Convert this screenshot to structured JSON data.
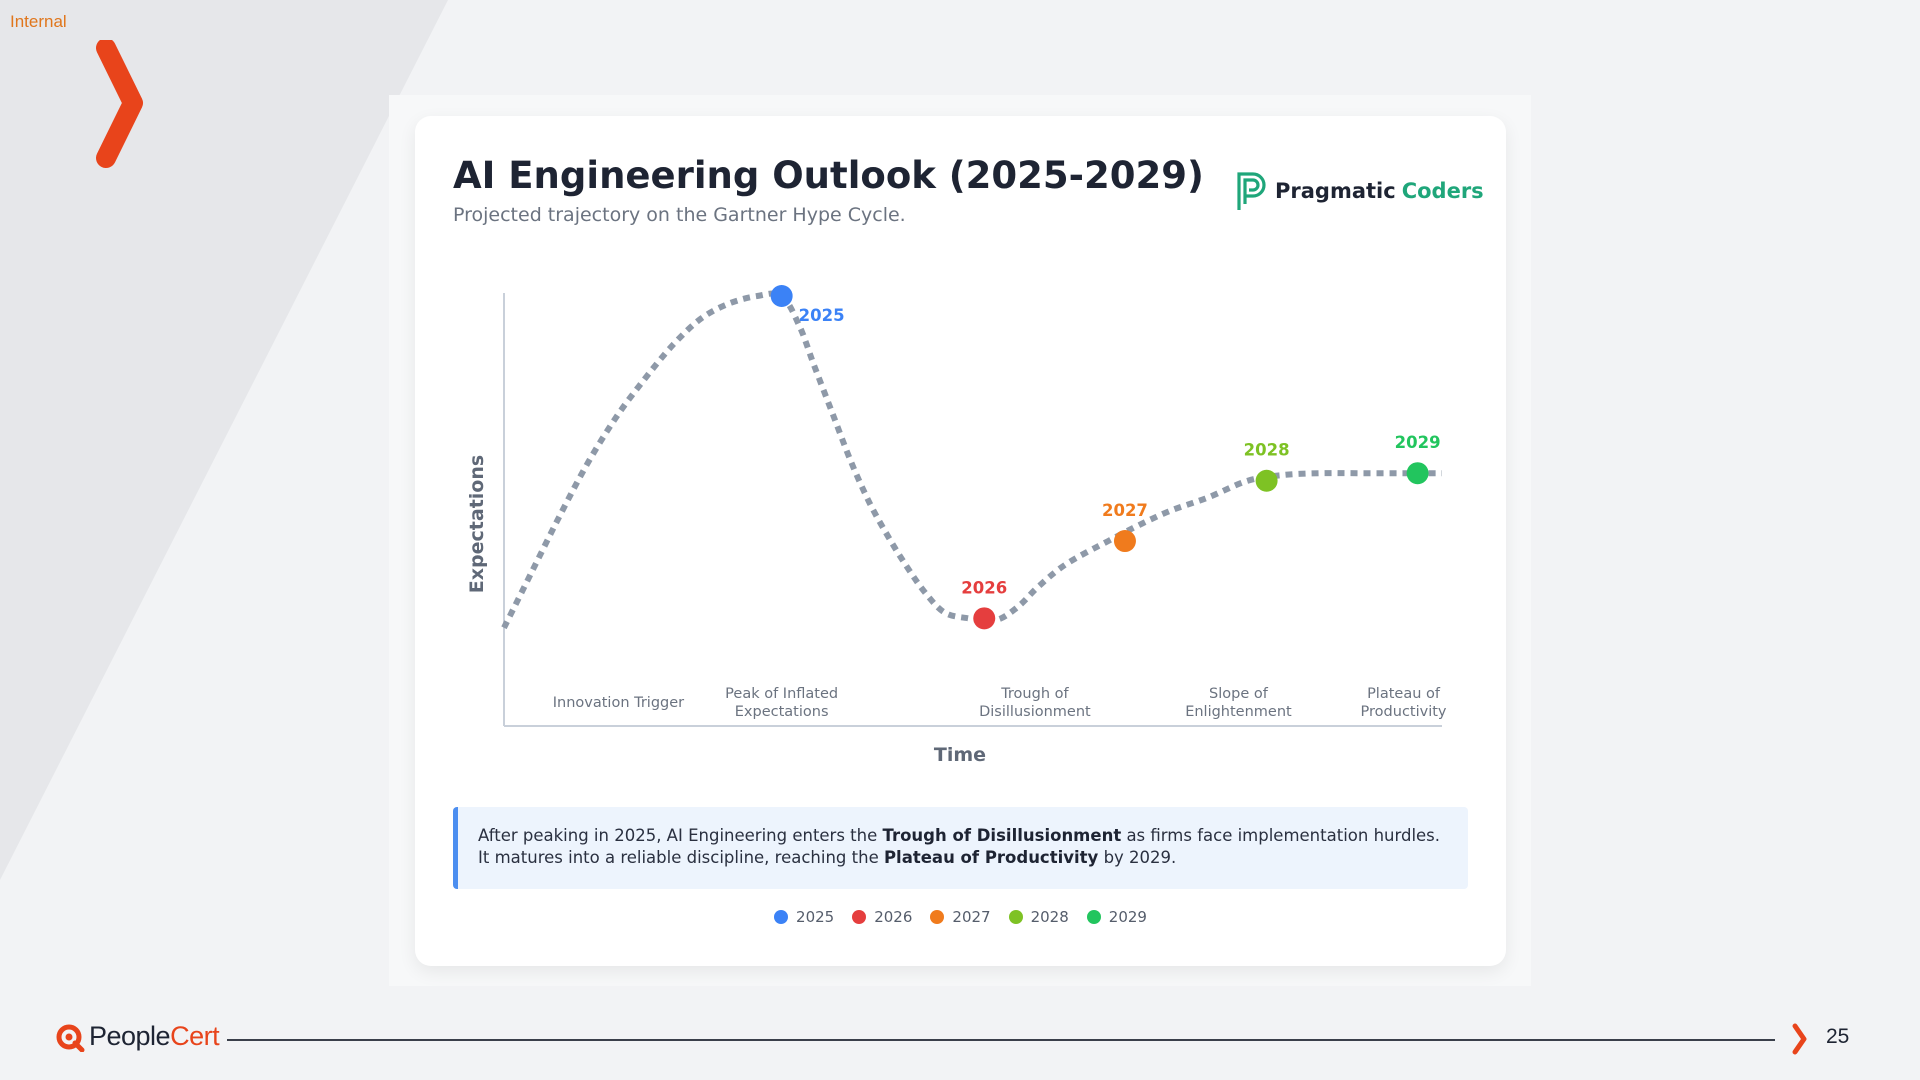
{
  "slide": {
    "classification": "Internal",
    "page_number": "25",
    "footer_brand": {
      "part1": "People",
      "part2": "Cert"
    },
    "colors": {
      "accent": "#e8441b",
      "classification": "#e0761c"
    }
  },
  "card": {
    "title": "AI Engineering Outlook (2025-2029)",
    "subtitle": "Projected trajectory on the Gartner Hype Cycle.",
    "brand": {
      "part1": "Pragmatic",
      "part2": "Coders",
      "color": "#1fa67a"
    },
    "callout": {
      "t1": "After peaking in 2025, AI Engineering enters the ",
      "b1": "Trough of Disillusionment",
      "t2": " as firms face implementation hurdles. It matures into a reliable discipline, reaching the ",
      "b2": "Plateau of Productivity",
      "t3": " by 2029."
    }
  },
  "chart_data": {
    "type": "line",
    "title": "AI Engineering Outlook (2025-2029)",
    "xlabel": "Time",
    "ylabel": "Expectations",
    "xlim": [
      0,
      100
    ],
    "ylim": [
      0,
      100
    ],
    "curve": {
      "style": "dashed",
      "color": "#8e99a8",
      "x": [
        0,
        3,
        6,
        9,
        12,
        15,
        18,
        21,
        24,
        27,
        29.6,
        31.5,
        33,
        35,
        37,
        39,
        41,
        43,
        45,
        47,
        49.5,
        51.5,
        53,
        55,
        57,
        60,
        64.4,
        67.5,
        71,
        75,
        79.3,
        83,
        87,
        91,
        95.5,
        100
      ],
      "y": [
        12,
        27,
        42,
        56,
        68,
        78,
        87,
        94,
        98,
        100,
        100,
        92,
        82,
        69,
        56,
        45,
        36,
        28,
        21,
        16,
        14.5,
        14,
        14.5,
        18,
        23,
        29,
        35,
        39,
        43,
        46.5,
        51,
        52.5,
        53,
        53,
        53,
        53
      ]
    },
    "points": [
      {
        "year": "2025",
        "x": 29.6,
        "y": 100,
        "color": "#3b82f6"
      },
      {
        "year": "2026",
        "x": 51.2,
        "y": 14.5,
        "color": "#e53e3e"
      },
      {
        "year": "2027",
        "x": 66.2,
        "y": 35,
        "color": "#f07b1d"
      },
      {
        "year": "2028",
        "x": 81.3,
        "y": 51,
        "color": "#7ec224"
      },
      {
        "year": "2029",
        "x": 97.4,
        "y": 53,
        "color": "#22c55e"
      }
    ],
    "phases": [
      {
        "label": "Innovation Trigger",
        "lines": [
          "Innovation Trigger"
        ],
        "x": 12.2
      },
      {
        "label": "Peak of Inflated Expectations",
        "lines": [
          "Peak of Inflated",
          "Expectations"
        ],
        "x": 29.6
      },
      {
        "label": "Trough of Disillusionment",
        "lines": [
          "Trough of",
          "Disillusionment"
        ],
        "x": 56.6
      },
      {
        "label": "Slope of Enlightenment",
        "lines": [
          "Slope of",
          "Enlightenment"
        ],
        "x": 78.3
      },
      {
        "label": "Plateau of Productivity",
        "lines": [
          "Plateau of",
          "Productivity"
        ],
        "x": 95.9
      }
    ],
    "legend": [
      "2025",
      "2026",
      "2027",
      "2028",
      "2029"
    ],
    "grid": false
  }
}
